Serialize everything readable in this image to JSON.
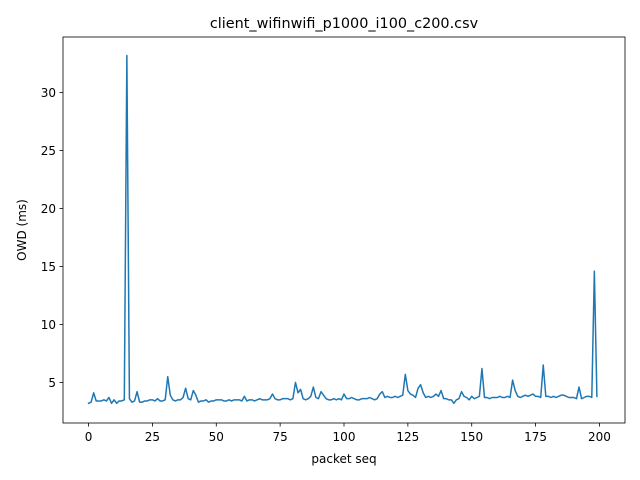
{
  "chart_data": {
    "type": "line",
    "title": "client_wifinwifi_p1000_i100_c200.csv",
    "xlabel": "packet seq",
    "ylabel": "OWD (ms)",
    "xlim": [
      -10,
      210
    ],
    "ylim": [
      1.5,
      34.8
    ],
    "xticks": [
      0,
      25,
      50,
      75,
      100,
      125,
      150,
      175,
      200
    ],
    "yticks": [
      5,
      10,
      15,
      20,
      25,
      30
    ],
    "xtick_labels": [
      "0",
      "25",
      "50",
      "75",
      "100",
      "125",
      "150",
      "175",
      "200"
    ],
    "ytick_labels": [
      "5",
      "10",
      "15",
      "20",
      "25",
      "30"
    ],
    "grid": false,
    "series": [
      {
        "color": "#1f77b4",
        "x": [
          0,
          1,
          2,
          3,
          4,
          5,
          6,
          7,
          8,
          9,
          10,
          11,
          12,
          13,
          14,
          15,
          16,
          17,
          18,
          19,
          20,
          21,
          22,
          23,
          24,
          25,
          26,
          27,
          28,
          29,
          30,
          31,
          32,
          33,
          34,
          35,
          36,
          37,
          38,
          39,
          40,
          41,
          42,
          43,
          44,
          45,
          46,
          47,
          48,
          49,
          50,
          51,
          52,
          53,
          54,
          55,
          56,
          57,
          58,
          59,
          60,
          61,
          62,
          63,
          64,
          65,
          66,
          67,
          68,
          69,
          70,
          71,
          72,
          73,
          74,
          75,
          76,
          77,
          78,
          79,
          80,
          81,
          82,
          83,
          84,
          85,
          86,
          87,
          88,
          89,
          90,
          91,
          92,
          93,
          94,
          95,
          96,
          97,
          98,
          99,
          100,
          101,
          102,
          103,
          104,
          105,
          106,
          107,
          108,
          109,
          110,
          111,
          112,
          113,
          114,
          115,
          116,
          117,
          118,
          119,
          120,
          121,
          122,
          123,
          124,
          125,
          126,
          127,
          128,
          129,
          130,
          131,
          132,
          133,
          134,
          135,
          136,
          137,
          138,
          139,
          140,
          141,
          142,
          143,
          144,
          145,
          146,
          147,
          148,
          149,
          150,
          151,
          152,
          153,
          154,
          155,
          156,
          157,
          158,
          159,
          160,
          161,
          162,
          163,
          164,
          165,
          166,
          167,
          168,
          169,
          170,
          171,
          172,
          173,
          174,
          175,
          176,
          177,
          178,
          179,
          180,
          181,
          182,
          183,
          184,
          185,
          186,
          187,
          188,
          189,
          190,
          191,
          192,
          193,
          194,
          195,
          196,
          197,
          198,
          199
        ],
        "y": [
          3.2,
          3.3,
          4.1,
          3.4,
          3.4,
          3.4,
          3.5,
          3.4,
          3.7,
          3.2,
          3.5,
          3.2,
          3.4,
          3.4,
          3.5,
          33.2,
          3.6,
          3.3,
          3.4,
          4.2,
          3.3,
          3.3,
          3.4,
          3.4,
          3.5,
          3.5,
          3.4,
          3.6,
          3.4,
          3.4,
          3.5,
          5.5,
          3.9,
          3.5,
          3.4,
          3.5,
          3.5,
          3.7,
          4.5,
          3.6,
          3.5,
          4.3,
          3.9,
          3.3,
          3.4,
          3.4,
          3.5,
          3.3,
          3.4,
          3.4,
          3.5,
          3.5,
          3.5,
          3.4,
          3.4,
          3.5,
          3.4,
          3.5,
          3.5,
          3.5,
          3.4,
          3.8,
          3.4,
          3.5,
          3.5,
          3.4,
          3.5,
          3.6,
          3.5,
          3.5,
          3.5,
          3.6,
          4.0,
          3.6,
          3.5,
          3.5,
          3.6,
          3.6,
          3.6,
          3.5,
          3.6,
          5.0,
          4.1,
          4.4,
          3.6,
          3.5,
          3.6,
          3.8,
          4.6,
          3.7,
          3.6,
          4.2,
          3.9,
          3.6,
          3.5,
          3.5,
          3.6,
          3.5,
          3.6,
          3.5,
          4.0,
          3.6,
          3.6,
          3.7,
          3.6,
          3.5,
          3.5,
          3.6,
          3.6,
          3.6,
          3.7,
          3.6,
          3.5,
          3.6,
          4.0,
          4.2,
          3.7,
          3.8,
          3.7,
          3.7,
          3.8,
          3.7,
          3.8,
          3.9,
          5.7,
          4.3,
          4.0,
          3.9,
          3.7,
          4.5,
          4.8,
          4.1,
          3.7,
          3.8,
          3.7,
          3.8,
          4.0,
          3.8,
          4.3,
          3.6,
          3.6,
          3.5,
          3.5,
          3.2,
          3.5,
          3.6,
          4.2,
          3.8,
          3.7,
          3.5,
          3.8,
          3.6,
          3.7,
          3.8,
          6.2,
          3.7,
          3.7,
          3.6,
          3.7,
          3.7,
          3.7,
          3.8,
          3.7,
          3.7,
          3.8,
          3.7,
          5.2,
          4.3,
          3.8,
          3.7,
          3.8,
          3.9,
          3.8,
          3.9,
          4.0,
          3.8,
          3.8,
          3.7,
          6.5,
          3.8,
          3.8,
          3.7,
          3.8,
          3.7,
          3.8,
          3.9,
          3.9,
          3.8,
          3.7,
          3.7,
          3.7,
          3.6,
          4.6,
          3.6,
          3.7,
          3.8,
          3.8,
          3.7,
          14.6,
          3.8
        ]
      }
    ]
  }
}
